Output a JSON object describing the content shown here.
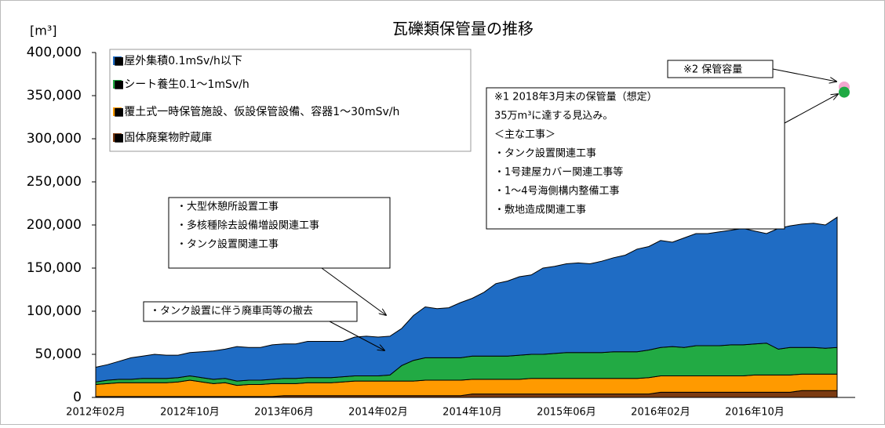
{
  "chart_data": {
    "type": "stacked_area",
    "title": "瓦礫類保管量の推移",
    "y_label": "[m³]",
    "categories": [
      "2012年02月",
      null,
      null,
      null,
      null,
      null,
      null,
      null,
      "2012年10月",
      null,
      null,
      null,
      null,
      null,
      null,
      null,
      "2013年06月",
      null,
      null,
      null,
      null,
      null,
      null,
      null,
      "2014年02月",
      null,
      null,
      null,
      null,
      null,
      null,
      null,
      "2014年10月",
      null,
      null,
      null,
      null,
      null,
      null,
      null,
      "2015年06月",
      null,
      null,
      null,
      null,
      null,
      null,
      null,
      "2016年02月",
      null,
      null,
      null,
      null,
      null,
      null,
      null,
      "2016年10月",
      null,
      null,
      null,
      null,
      null,
      null,
      null
    ],
    "series": [
      {
        "name": "■屋外集積0.1mSv/h以下",
        "color": "#1f6cc4",
        "values": [
          17000,
          18000,
          21000,
          25000,
          26000,
          28000,
          27000,
          26000,
          27000,
          30000,
          33000,
          34000,
          40000,
          38000,
          38000,
          40000,
          40000,
          40000,
          42000,
          42000,
          42000,
          41000,
          45000,
          46000,
          45000,
          45000,
          43000,
          52000,
          59000,
          57000,
          58000,
          64000,
          67000,
          74000,
          84000,
          87000,
          91000,
          92000,
          100000,
          101000,
          103000,
          104000,
          103000,
          106000,
          109000,
          112000,
          119000,
          120000,
          124000,
          121000,
          127000,
          130000,
          130000,
          132000,
          133000,
          135000,
          131000,
          127000,
          140000,
          141000,
          143000,
          144000,
          143000,
          151000
        ]
      },
      {
        "name": "■シート養生0.1～1mSv/h",
        "color": "#22aa44",
        "values": [
          3000,
          4000,
          4000,
          4000,
          5000,
          5000,
          5000,
          5000,
          5000,
          5000,
          5000,
          5000,
          5000,
          5000,
          5000,
          5000,
          6000,
          6000,
          6000,
          6000,
          6000,
          6000,
          6000,
          6000,
          6000,
          7000,
          18000,
          24000,
          26000,
          26000,
          26000,
          26000,
          27000,
          27000,
          27000,
          27000,
          28000,
          28000,
          28000,
          29000,
          30000,
          30000,
          30000,
          30000,
          31000,
          31000,
          31000,
          32000,
          33000,
          34000,
          33000,
          35000,
          35000,
          35000,
          36000,
          36000,
          36000,
          37000,
          30000,
          32000,
          31000,
          31000,
          30000,
          31000
        ]
      },
      {
        "name": "■覆土式一時保管施設、仮設保管設備、容器1～30mSv/h",
        "color": "#ff9a00",
        "values": [
          14000,
          15000,
          16000,
          16000,
          16000,
          16000,
          16000,
          17000,
          19000,
          17000,
          15000,
          16000,
          13000,
          14000,
          14000,
          15000,
          14000,
          14000,
          15000,
          15000,
          15000,
          16000,
          17000,
          17000,
          17000,
          17000,
          17000,
          17000,
          18000,
          18000,
          18000,
          18000,
          17000,
          17000,
          17000,
          17000,
          17000,
          18000,
          18000,
          18000,
          18000,
          18000,
          18000,
          18000,
          18000,
          18000,
          18000,
          19000,
          19000,
          19000,
          19000,
          19000,
          19000,
          19000,
          19000,
          19000,
          20000,
          20000,
          20000,
          20000,
          19000,
          19000,
          19000,
          19000
        ]
      },
      {
        "name": "■固体廃棄物貯蔵庫",
        "color": "#7b3b12",
        "values": [
          1000,
          1000,
          1000,
          1000,
          1000,
          1000,
          1000,
          1000,
          1000,
          1000,
          1000,
          1000,
          1000,
          1000,
          1000,
          1000,
          2000,
          2000,
          2000,
          2000,
          2000,
          2000,
          2000,
          2000,
          2000,
          2000,
          2000,
          2000,
          2000,
          2000,
          2000,
          2000,
          4000,
          4000,
          4000,
          4000,
          4000,
          4000,
          4000,
          4000,
          4000,
          4000,
          4000,
          4000,
          4000,
          4000,
          4000,
          4000,
          6000,
          6000,
          6000,
          6000,
          6000,
          6000,
          6000,
          6000,
          6000,
          6000,
          6000,
          6000,
          8000,
          8000,
          8000,
          8000
        ]
      }
    ],
    "markers": [
      {
        "color": "#f4a6cf",
        "value": 360000
      },
      {
        "color": "#1faa44",
        "value": 354000
      }
    ],
    "ylim": [
      0,
      400000
    ],
    "yticks": [
      0,
      {
        "value": 50000,
        "label": "50,000"
      },
      {
        "value": 100000,
        "label": "100,000"
      },
      {
        "value": 150000,
        "label": "150,000"
      },
      {
        "value": 200000,
        "label": "200,000"
      },
      {
        "value": 250000,
        "label": "250,000"
      },
      {
        "value": 300000,
        "label": "300,000"
      },
      {
        "value": 350000,
        "label": "350,000"
      },
      {
        "value": 400000,
        "label": "400,000"
      }
    ],
    "annotations": [
      {
        "lines": [
          "※2 保管容量"
        ]
      },
      {
        "lines": [
          "※1 2018年3月末の保管量（想定）",
          "35万m³に達する見込み。",
          "＜主な工事＞",
          "・タンク設置関連工事",
          "・1号建屋カバー関連工事等",
          "・1～4号海側構内整備工事",
          "・敷地造成関連工事"
        ]
      },
      {
        "lines": [
          "・大型休憩所設置工事",
          "・多核種除去設備増設関連工事",
          "・タンク設置関連工事"
        ]
      },
      {
        "lines": [
          "・タンク設置に伴う廃車両等の撤去"
        ]
      }
    ]
  }
}
